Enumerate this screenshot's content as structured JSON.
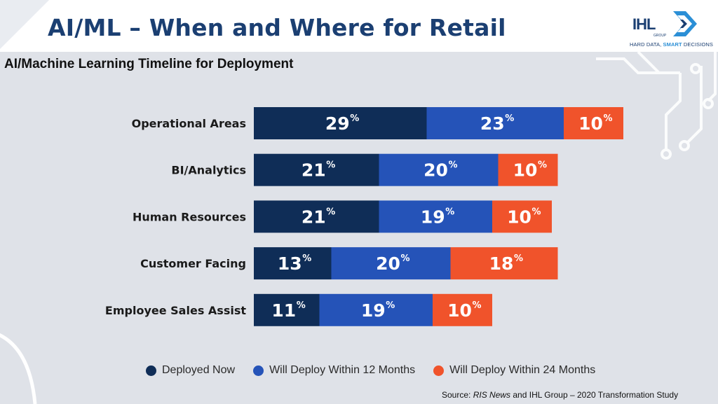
{
  "slide": {
    "title": "AI/ML – When and Where for Retail",
    "subtitle": "AI/Machine Learning Timeline for Deployment"
  },
  "logo": {
    "word": "IHL",
    "group_label": "GROUP",
    "tagline_plain": "HARD DATA, ",
    "tagline_accent": "SMART",
    "tagline_end": " DECISIONS"
  },
  "source": {
    "prefix": "Source: ",
    "publication": "RIS News",
    "suffix": " and IHL Group – 2020 Transformation Study"
  },
  "colors": {
    "deployed_now": "#0f2d57",
    "within_12": "#2553b8",
    "within_24": "#f0532b",
    "title": "#1b3f72"
  },
  "chart_data": {
    "type": "bar",
    "orientation": "horizontal",
    "stacked": true,
    "value_suffix": "%",
    "categories": [
      "Operational Areas",
      "BI/Analytics",
      "Human Resources",
      "Customer Facing",
      "Employee Sales Assist"
    ],
    "series": [
      {
        "name": "Deployed Now",
        "color": "#0f2d57",
        "values": [
          29,
          21,
          21,
          13,
          11
        ]
      },
      {
        "name": "Will Deploy Within 12 Months",
        "color": "#2553b8",
        "values": [
          23,
          20,
          19,
          20,
          19
        ]
      },
      {
        "name": "Will Deploy Within 24 Months",
        "color": "#f0532b",
        "values": [
          10,
          10,
          10,
          18,
          10
        ]
      }
    ],
    "legend_position": "bottom",
    "grid": false
  }
}
